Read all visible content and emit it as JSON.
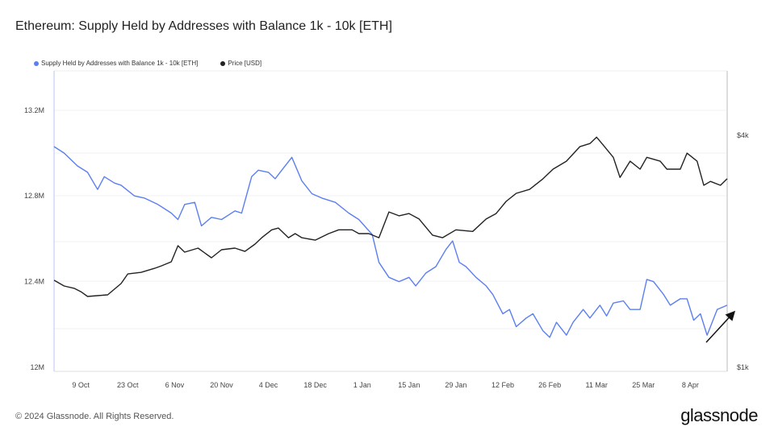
{
  "title": "Ethereum: Supply Held by Addresses with Balance 1k - 10k [ETH]",
  "footer": "© 2024 Glassnode. All Rights Reserved.",
  "logo": "glassnode",
  "chart_data": {
    "type": "line",
    "title": "Ethereum: Supply Held by Addresses with Balance 1k - 10k [ETH]",
    "x_unit": "days since 2023-10-01",
    "xlim": [
      0,
      201
    ],
    "x_ticks": [
      {
        "day": 8,
        "label": "9 Oct"
      },
      {
        "day": 22,
        "label": "23 Oct"
      },
      {
        "day": 36,
        "label": "6 Nov"
      },
      {
        "day": 50,
        "label": "20 Nov"
      },
      {
        "day": 64,
        "label": "4 Dec"
      },
      {
        "day": 78,
        "label": "18 Dec"
      },
      {
        "day": 92,
        "label": "1 Jan"
      },
      {
        "day": 106,
        "label": "15 Jan"
      },
      {
        "day": 120,
        "label": "29 Jan"
      },
      {
        "day": 134,
        "label": "12 Feb"
      },
      {
        "day": 148,
        "label": "26 Feb"
      },
      {
        "day": 162,
        "label": "11 Mar"
      },
      {
        "day": 176,
        "label": "25 Mar"
      },
      {
        "day": 190,
        "label": "8 Apr"
      }
    ],
    "y_left": {
      "lim": [
        12.0,
        13.4
      ],
      "ticks": [
        {
          "v": 12.0,
          "label": "12M"
        },
        {
          "v": 12.4,
          "label": "12.4M"
        },
        {
          "v": 12.8,
          "label": "12.8M"
        },
        {
          "v": 13.2,
          "label": "13.2M"
        }
      ]
    },
    "y_right": {
      "scale": "log",
      "lim": [
        1000,
        5000
      ],
      "ticks": [
        {
          "v": 1000,
          "label": "$1k"
        },
        {
          "v": 4000,
          "label": "$4k"
        }
      ]
    },
    "legend_position": "top-left",
    "series": [
      {
        "name": "Supply Held by Addresses with Balance 1k - 10k [ETH]",
        "axis": "left",
        "color": "#5b7ff0",
        "x": [
          0,
          3,
          7,
          10,
          13,
          15,
          18,
          20,
          24,
          27,
          31,
          35,
          37,
          39,
          42,
          44,
          47,
          50,
          54,
          56,
          59,
          61,
          64,
          66,
          68,
          71,
          74,
          77,
          80,
          84,
          88,
          91,
          95,
          97,
          100,
          103,
          106,
          108,
          111,
          114,
          117,
          119,
          121,
          123,
          126,
          129,
          131,
          134,
          136,
          138,
          141,
          143,
          146,
          148,
          150,
          153,
          155,
          158,
          160,
          163,
          165,
          167,
          170,
          172,
          175,
          177,
          179,
          182,
          184,
          187,
          189,
          191,
          193,
          195,
          196,
          198,
          201
        ],
        "y": [
          13.03,
          13.0,
          12.94,
          12.91,
          12.83,
          12.89,
          12.86,
          12.85,
          12.8,
          12.79,
          12.76,
          12.72,
          12.69,
          12.76,
          12.77,
          12.66,
          12.7,
          12.69,
          12.73,
          12.72,
          12.89,
          12.92,
          12.91,
          12.88,
          12.92,
          12.98,
          12.87,
          12.81,
          12.79,
          12.77,
          12.72,
          12.69,
          12.62,
          12.49,
          12.42,
          12.4,
          12.42,
          12.38,
          12.44,
          12.47,
          12.55,
          12.59,
          12.49,
          12.47,
          12.42,
          12.38,
          12.34,
          12.25,
          12.27,
          12.19,
          12.23,
          12.25,
          12.17,
          12.14,
          12.21,
          12.15,
          12.21,
          12.27,
          12.23,
          12.29,
          12.24,
          12.3,
          12.31,
          12.27,
          12.27,
          12.41,
          12.4,
          12.34,
          12.29,
          12.32,
          12.32,
          12.22,
          12.25,
          12.15,
          12.19,
          12.27,
          12.29
        ]
      },
      {
        "name": "Price [USD]",
        "axis": "right",
        "color": "#222222",
        "x": [
          0,
          3,
          6,
          8,
          10,
          13,
          16,
          20,
          22,
          26,
          30,
          32,
          35,
          37,
          39,
          43,
          47,
          50,
          54,
          57,
          60,
          62,
          65,
          67,
          70,
          72,
          74,
          78,
          82,
          85,
          89,
          91,
          94,
          97,
          100,
          103,
          106,
          109,
          113,
          116,
          120,
          125,
          129,
          132,
          135,
          138,
          142,
          146,
          149,
          153,
          157,
          160,
          162,
          164,
          167,
          169,
          172,
          175,
          177,
          181,
          183,
          187,
          189,
          192,
          194,
          196,
          199,
          201
        ],
        "y": [
          1683,
          1627,
          1604,
          1572,
          1528,
          1535,
          1543,
          1650,
          1748,
          1765,
          1808,
          1834,
          1880,
          2070,
          1991,
          2040,
          1925,
          2020,
          2040,
          2000,
          2090,
          2171,
          2276,
          2300,
          2171,
          2225,
          2171,
          2140,
          2225,
          2276,
          2276,
          2225,
          2225,
          2171,
          2532,
          2475,
          2508,
          2427,
          2204,
          2171,
          2276,
          2254,
          2427,
          2508,
          2697,
          2831,
          2898,
          3089,
          3270,
          3430,
          3741,
          3813,
          3960,
          3776,
          3510,
          3113,
          3430,
          3270,
          3510,
          3430,
          3270,
          3270,
          3600,
          3430,
          2970,
          3040,
          2970,
          3089
        ]
      }
    ],
    "annotation": "upward arrow near latest supply values"
  }
}
